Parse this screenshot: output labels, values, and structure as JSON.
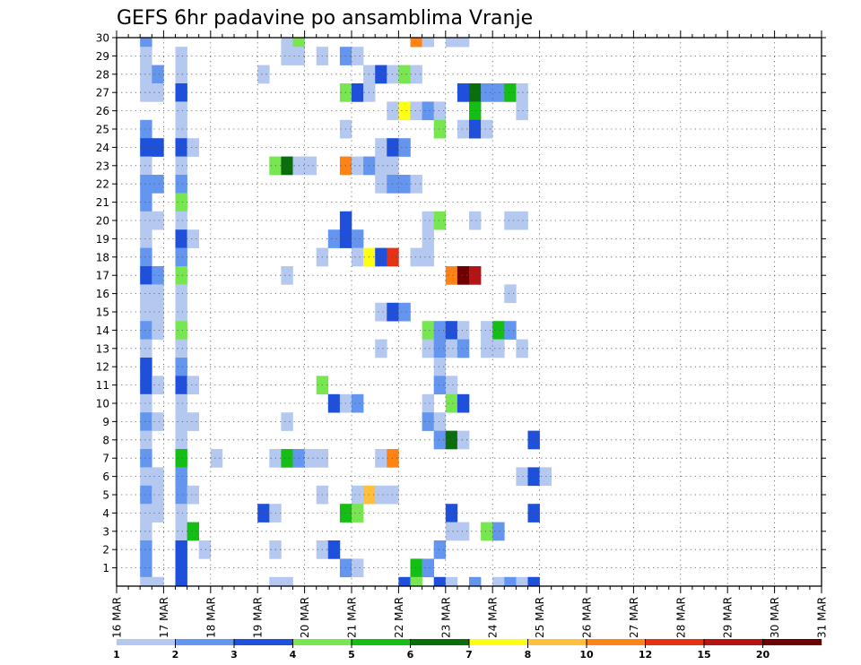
{
  "chart_data": {
    "type": "heatmap",
    "title": "GEFS 6hr padavine po ansamblima Vranje",
    "x_labels": [
      "16 MAR",
      "17 MAR",
      "18 MAR",
      "19 MAR",
      "20 MAR",
      "21 MAR",
      "22 MAR",
      "23 MAR",
      "24 MAR",
      "25 MAR",
      "26 MAR",
      "27 MAR",
      "28 MAR",
      "29 MAR",
      "30 MAR",
      "31 MAR"
    ],
    "y_labels": [
      "1",
      "2",
      "3",
      "4",
      "5",
      "6",
      "7",
      "8",
      "9",
      "10",
      "11",
      "12",
      "13",
      "14",
      "15",
      "16",
      "17",
      "18",
      "19",
      "20",
      "21",
      "22",
      "23",
      "24",
      "25",
      "26",
      "27",
      "28",
      "29",
      "30"
    ],
    "y_range": [
      0,
      30
    ],
    "steps_per_day": 4,
    "grid": true,
    "colorbar": {
      "levels": [
        "1",
        "2",
        "3",
        "4",
        "5",
        "6",
        "7",
        "8",
        "10",
        "12",
        "15",
        "20"
      ],
      "colors": [
        "#b4c8f0",
        "#6496f0",
        "#1e50dc",
        "#78e650",
        "#14be14",
        "#0a6e0a",
        "#ffff14",
        "#ffbe3c",
        "#ff8214",
        "#e63214",
        "#b41414",
        "#6e0000"
      ]
    },
    "cells_note": "cells as [step_index_from_16_MAR_00UTC, member, color_class]",
    "cells": [
      [
        2,
        30,
        2
      ],
      [
        14,
        30,
        1
      ],
      [
        15,
        30,
        4
      ],
      [
        25,
        30,
        9
      ],
      [
        26,
        30,
        1
      ],
      [
        28,
        30,
        1
      ],
      [
        29,
        30,
        1
      ],
      [
        2,
        29,
        1
      ],
      [
        5,
        29,
        1
      ],
      [
        14,
        29,
        1
      ],
      [
        15,
        29,
        1
      ],
      [
        17,
        29,
        1
      ],
      [
        19,
        29,
        2
      ],
      [
        20,
        29,
        1
      ],
      [
        2,
        28,
        1
      ],
      [
        3,
        28,
        2
      ],
      [
        5,
        28,
        1
      ],
      [
        12,
        28,
        1
      ],
      [
        21,
        28,
        1
      ],
      [
        22,
        28,
        3
      ],
      [
        23,
        28,
        1
      ],
      [
        24,
        28,
        4
      ],
      [
        25,
        28,
        1
      ],
      [
        2,
        27,
        1
      ],
      [
        3,
        27,
        1
      ],
      [
        5,
        27,
        3
      ],
      [
        19,
        27,
        4
      ],
      [
        20,
        27,
        3
      ],
      [
        21,
        27,
        1
      ],
      [
        29,
        27,
        3
      ],
      [
        30,
        27,
        6
      ],
      [
        31,
        27,
        2
      ],
      [
        32,
        27,
        2
      ],
      [
        33,
        27,
        5
      ],
      [
        34,
        27,
        1
      ],
      [
        5,
        26,
        1
      ],
      [
        23,
        26,
        1
      ],
      [
        24,
        26,
        7
      ],
      [
        25,
        26,
        1
      ],
      [
        26,
        26,
        2
      ],
      [
        27,
        26,
        1
      ],
      [
        30,
        26,
        5
      ],
      [
        34,
        26,
        1
      ],
      [
        2,
        25,
        2
      ],
      [
        5,
        25,
        1
      ],
      [
        19,
        25,
        1
      ],
      [
        27,
        25,
        4
      ],
      [
        29,
        25,
        1
      ],
      [
        30,
        25,
        3
      ],
      [
        31,
        25,
        1
      ],
      [
        2,
        24,
        3
      ],
      [
        3,
        24,
        3
      ],
      [
        5,
        24,
        3
      ],
      [
        6,
        24,
        1
      ],
      [
        22,
        24,
        1
      ],
      [
        23,
        24,
        3
      ],
      [
        24,
        24,
        2
      ],
      [
        2,
        23,
        1
      ],
      [
        5,
        23,
        1
      ],
      [
        13,
        23,
        4
      ],
      [
        14,
        23,
        6
      ],
      [
        15,
        23,
        1
      ],
      [
        16,
        23,
        1
      ],
      [
        19,
        23,
        9
      ],
      [
        20,
        23,
        1
      ],
      [
        21,
        23,
        2
      ],
      [
        22,
        23,
        1
      ],
      [
        23,
        23,
        1
      ],
      [
        2,
        22,
        2
      ],
      [
        3,
        22,
        2
      ],
      [
        5,
        22,
        2
      ],
      [
        22,
        22,
        1
      ],
      [
        23,
        22,
        2
      ],
      [
        24,
        22,
        2
      ],
      [
        25,
        22,
        1
      ],
      [
        2,
        21,
        2
      ],
      [
        5,
        21,
        4
      ],
      [
        2,
        20,
        1
      ],
      [
        3,
        20,
        1
      ],
      [
        5,
        20,
        1
      ],
      [
        19,
        20,
        3
      ],
      [
        26,
        20,
        1
      ],
      [
        27,
        20,
        4
      ],
      [
        30,
        20,
        1
      ],
      [
        33,
        20,
        1
      ],
      [
        34,
        20,
        1
      ],
      [
        2,
        19,
        1
      ],
      [
        5,
        19,
        3
      ],
      [
        6,
        19,
        1
      ],
      [
        18,
        19,
        2
      ],
      [
        19,
        19,
        3
      ],
      [
        20,
        19,
        2
      ],
      [
        26,
        19,
        1
      ],
      [
        2,
        18,
        2
      ],
      [
        5,
        18,
        2
      ],
      [
        17,
        18,
        1
      ],
      [
        20,
        18,
        1
      ],
      [
        21,
        18,
        7
      ],
      [
        22,
        18,
        3
      ],
      [
        23,
        18,
        10
      ],
      [
        25,
        18,
        1
      ],
      [
        26,
        18,
        1
      ],
      [
        2,
        17,
        3
      ],
      [
        3,
        17,
        2
      ],
      [
        5,
        17,
        4
      ],
      [
        14,
        17,
        1
      ],
      [
        28,
        17,
        9
      ],
      [
        29,
        17,
        12
      ],
      [
        30,
        17,
        11
      ],
      [
        2,
        16,
        1
      ],
      [
        3,
        16,
        1
      ],
      [
        5,
        16,
        1
      ],
      [
        33,
        16,
        1
      ],
      [
        2,
        15,
        1
      ],
      [
        3,
        15,
        1
      ],
      [
        5,
        15,
        1
      ],
      [
        22,
        15,
        1
      ],
      [
        23,
        15,
        3
      ],
      [
        24,
        15,
        2
      ],
      [
        2,
        14,
        2
      ],
      [
        3,
        14,
        1
      ],
      [
        5,
        14,
        4
      ],
      [
        26,
        14,
        4
      ],
      [
        27,
        14,
        2
      ],
      [
        28,
        14,
        3
      ],
      [
        29,
        14,
        1
      ],
      [
        31,
        14,
        1
      ],
      [
        32,
        14,
        5
      ],
      [
        33,
        14,
        2
      ],
      [
        2,
        13,
        1
      ],
      [
        5,
        13,
        1
      ],
      [
        22,
        13,
        1
      ],
      [
        26,
        13,
        1
      ],
      [
        27,
        13,
        2
      ],
      [
        28,
        13,
        1
      ],
      [
        29,
        13,
        2
      ],
      [
        31,
        13,
        1
      ],
      [
        32,
        13,
        1
      ],
      [
        34,
        13,
        1
      ],
      [
        2,
        12,
        3
      ],
      [
        5,
        12,
        2
      ],
      [
        27,
        12,
        1
      ],
      [
        2,
        11,
        3
      ],
      [
        3,
        11,
        1
      ],
      [
        5,
        11,
        3
      ],
      [
        6,
        11,
        1
      ],
      [
        17,
        11,
        4
      ],
      [
        27,
        11,
        2
      ],
      [
        28,
        11,
        1
      ],
      [
        2,
        10,
        1
      ],
      [
        5,
        10,
        1
      ],
      [
        18,
        10,
        3
      ],
      [
        19,
        10,
        1
      ],
      [
        20,
        10,
        2
      ],
      [
        26,
        10,
        1
      ],
      [
        28,
        10,
        4
      ],
      [
        29,
        10,
        3
      ],
      [
        2,
        9,
        2
      ],
      [
        3,
        9,
        1
      ],
      [
        5,
        9,
        1
      ],
      [
        6,
        9,
        1
      ],
      [
        14,
        9,
        1
      ],
      [
        26,
        9,
        2
      ],
      [
        27,
        9,
        1
      ],
      [
        2,
        8,
        1
      ],
      [
        5,
        8,
        1
      ],
      [
        27,
        8,
        2
      ],
      [
        28,
        8,
        6
      ],
      [
        29,
        8,
        1
      ],
      [
        35,
        8,
        3
      ],
      [
        2,
        7,
        2
      ],
      [
        5,
        7,
        5
      ],
      [
        8,
        7,
        1
      ],
      [
        13,
        7,
        1
      ],
      [
        14,
        7,
        5
      ],
      [
        15,
        7,
        2
      ],
      [
        16,
        7,
        1
      ],
      [
        17,
        7,
        1
      ],
      [
        22,
        7,
        1
      ],
      [
        23,
        7,
        9
      ],
      [
        2,
        6,
        1
      ],
      [
        3,
        6,
        1
      ],
      [
        5,
        6,
        2
      ],
      [
        34,
        6,
        1
      ],
      [
        35,
        6,
        3
      ],
      [
        36,
        6,
        1
      ],
      [
        2,
        5,
        2
      ],
      [
        3,
        5,
        1
      ],
      [
        5,
        5,
        2
      ],
      [
        6,
        5,
        1
      ],
      [
        17,
        5,
        1
      ],
      [
        20,
        5,
        1
      ],
      [
        21,
        5,
        8
      ],
      [
        22,
        5,
        1
      ],
      [
        23,
        5,
        1
      ],
      [
        2,
        4,
        1
      ],
      [
        3,
        4,
        1
      ],
      [
        5,
        4,
        1
      ],
      [
        12,
        4,
        3
      ],
      [
        13,
        4,
        1
      ],
      [
        19,
        4,
        5
      ],
      [
        20,
        4,
        4
      ],
      [
        28,
        4,
        3
      ],
      [
        35,
        4,
        3
      ],
      [
        2,
        3,
        1
      ],
      [
        5,
        3,
        1
      ],
      [
        6,
        3,
        5
      ],
      [
        28,
        3,
        1
      ],
      [
        29,
        3,
        1
      ],
      [
        31,
        3,
        4
      ],
      [
        32,
        3,
        2
      ],
      [
        2,
        2,
        2
      ],
      [
        5,
        2,
        3
      ],
      [
        7,
        2,
        1
      ],
      [
        13,
        2,
        1
      ],
      [
        17,
        2,
        1
      ],
      [
        18,
        2,
        3
      ],
      [
        27,
        2,
        2
      ],
      [
        2,
        1,
        2
      ],
      [
        5,
        1,
        3
      ],
      [
        19,
        1,
        2
      ],
      [
        20,
        1,
        1
      ],
      [
        25,
        1,
        5
      ],
      [
        26,
        1,
        2
      ],
      [
        2,
        0,
        1
      ],
      [
        3,
        0,
        1
      ],
      [
        5,
        0,
        3
      ],
      [
        13,
        0,
        1
      ],
      [
        14,
        0,
        1
      ],
      [
        24,
        0,
        3
      ],
      [
        25,
        0,
        4
      ],
      [
        27,
        0,
        3
      ],
      [
        28,
        0,
        1
      ],
      [
        30,
        0,
        2
      ],
      [
        32,
        0,
        1
      ],
      [
        33,
        0,
        2
      ],
      [
        34,
        0,
        1
      ],
      [
        35,
        0,
        3
      ]
    ]
  }
}
